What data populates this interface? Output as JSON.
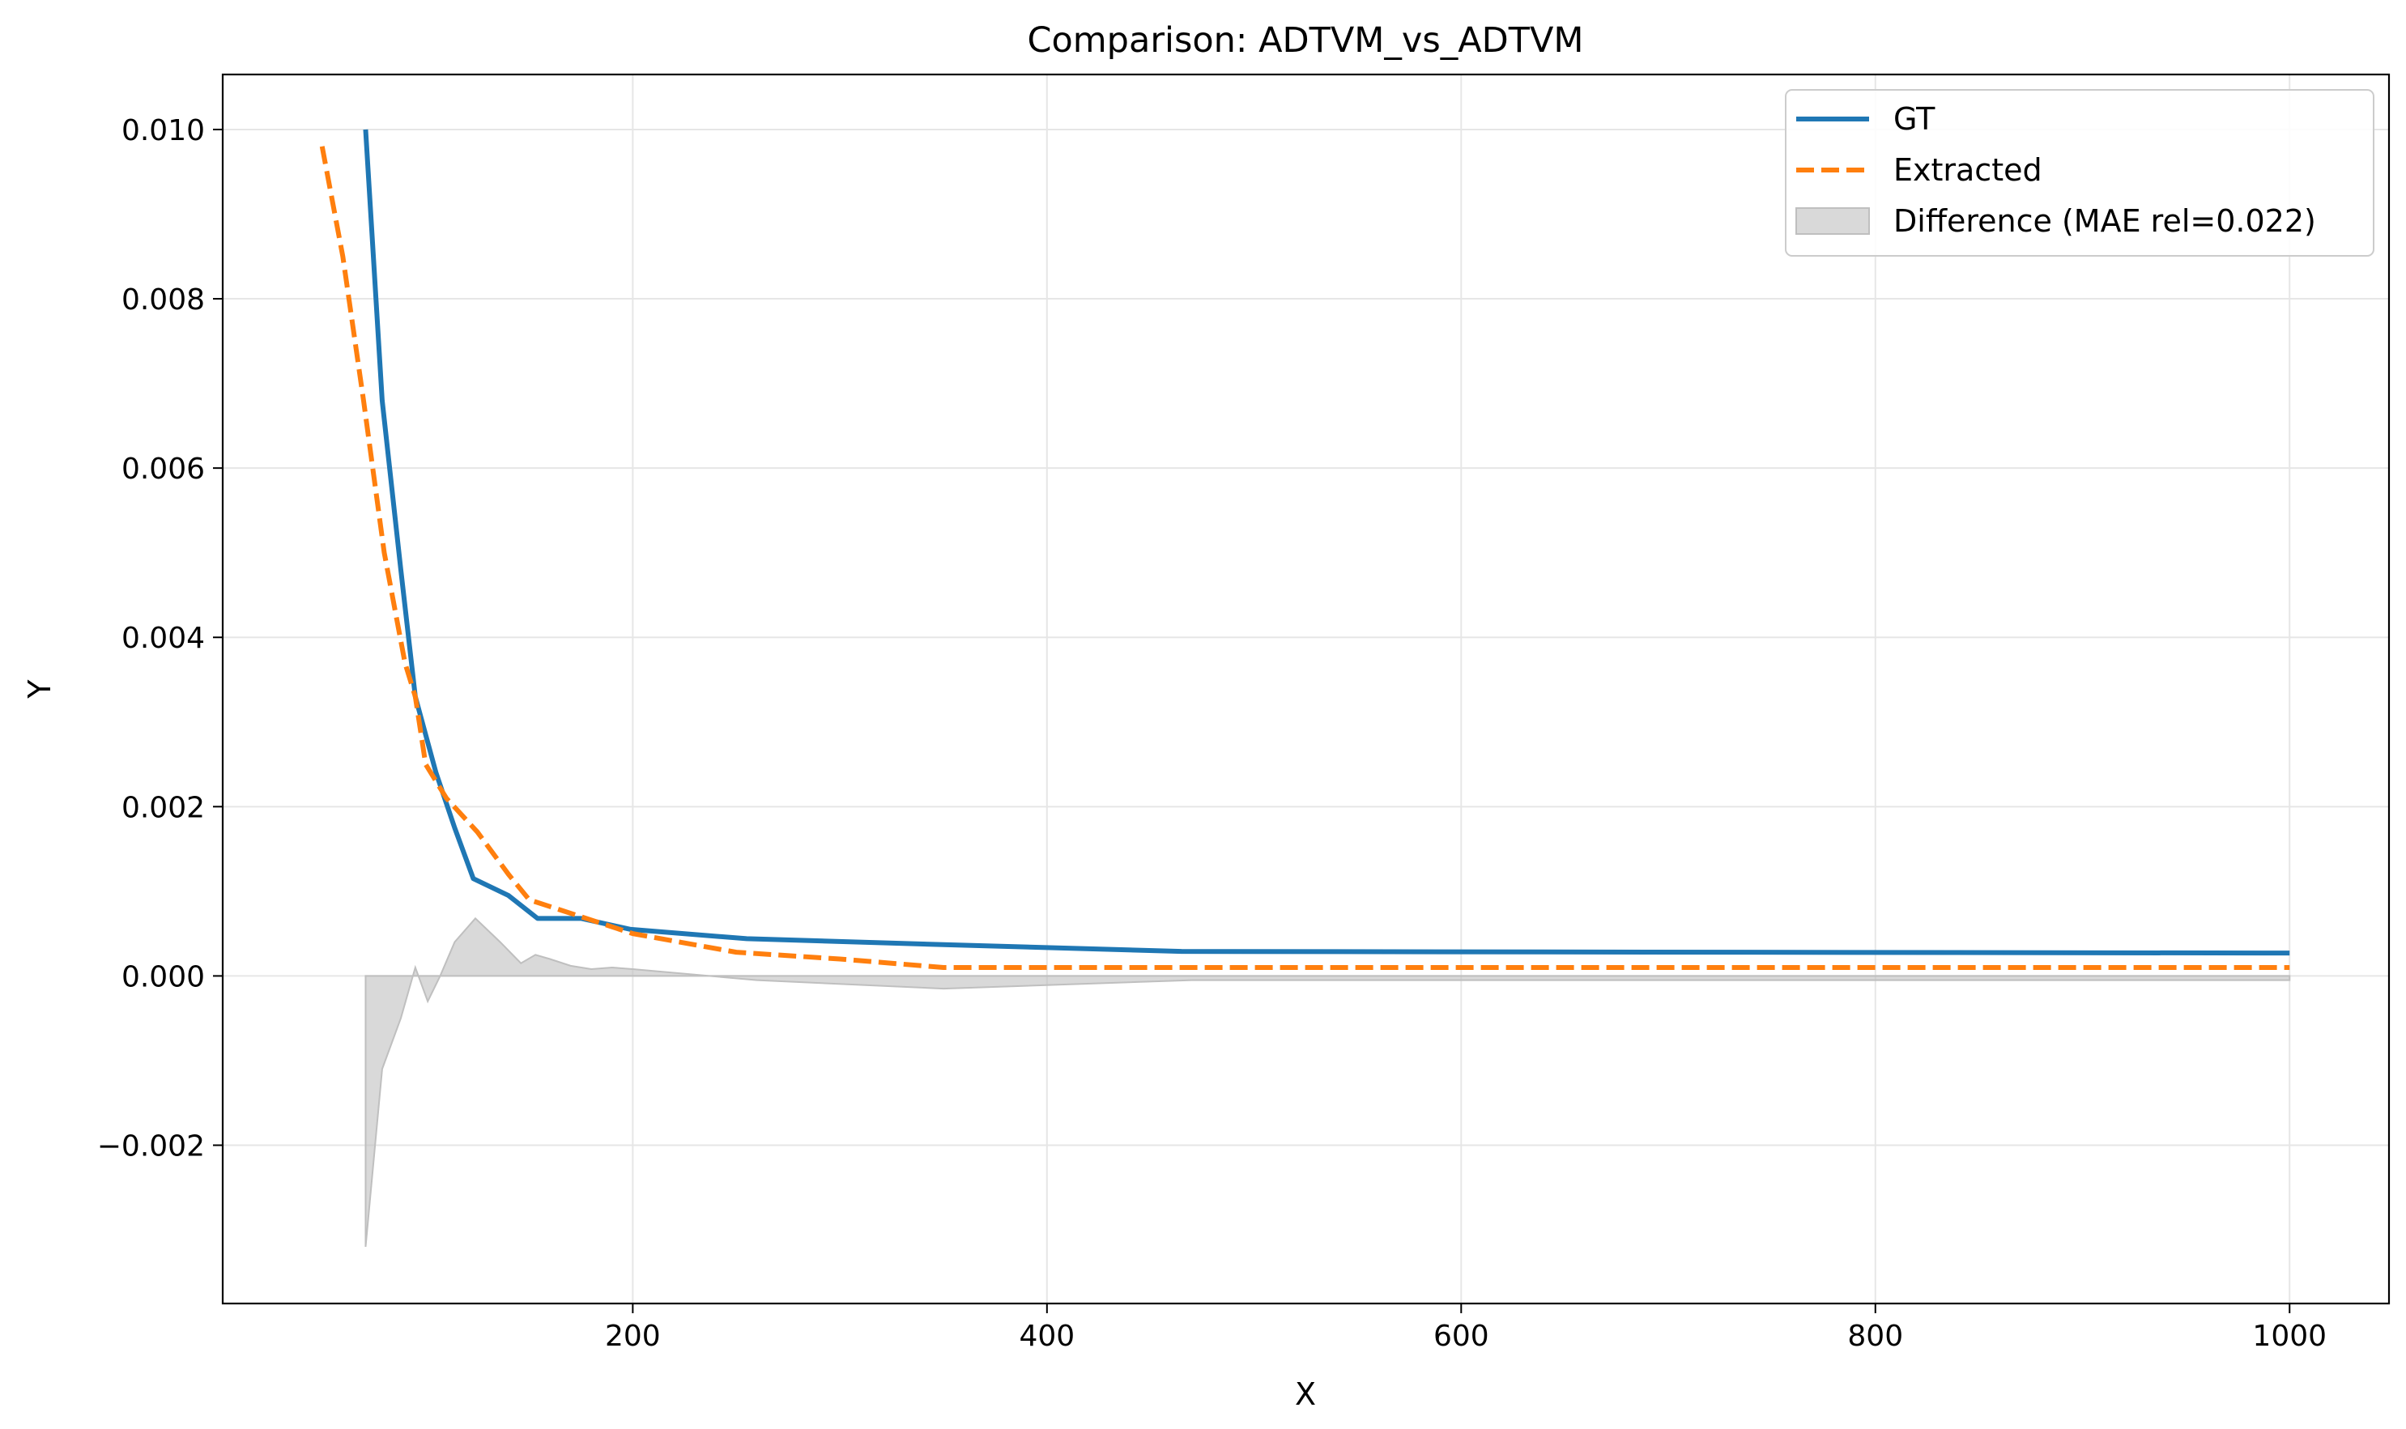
{
  "chart_data": {
    "type": "line",
    "title": "Comparison: ADTVM_vs_ADTVM",
    "xlabel": "X",
    "ylabel": "Y",
    "xlim": [
      2,
      1048
    ],
    "ylim": [
      -0.00387,
      0.01065
    ],
    "xticks": [
      200,
      400,
      600,
      800,
      1000
    ],
    "xtick_labels": [
      "200",
      "400",
      "600",
      "800",
      "1000"
    ],
    "yticks": [
      -0.002,
      0.0,
      0.002,
      0.004,
      0.006,
      0.008,
      0.01
    ],
    "ytick_labels": [
      "−0.002",
      "0.000",
      "0.002",
      "0.004",
      "0.006",
      "0.008",
      "0.010"
    ],
    "grid": true,
    "legend_position": "top-right",
    "series": [
      {
        "name": "GT",
        "color": "#1f77b4",
        "style": "solid",
        "x": [
          71,
          79,
          88,
          95,
          105,
          114,
          123,
          140,
          154,
          175,
          199,
          255,
          350,
          465,
          1000
        ],
        "y": [
          0.01,
          0.0068,
          0.0048,
          0.0033,
          0.0024,
          0.00175,
          0.00115,
          0.00095,
          0.00068,
          0.00068,
          0.00055,
          0.00044,
          0.00037,
          0.00029,
          0.00027
        ]
      },
      {
        "name": "Extracted",
        "color": "#ff7f0e",
        "style": "dashed",
        "x": [
          50,
          60,
          70,
          80,
          90,
          95,
          100,
          110,
          125,
          140,
          150,
          175,
          200,
          250,
          300,
          350,
          1000
        ],
        "y": [
          0.0098,
          0.0085,
          0.0068,
          0.005,
          0.0037,
          0.0033,
          0.0025,
          0.0021,
          0.0017,
          0.0012,
          0.0009,
          0.0007,
          0.0005,
          0.00028,
          0.0002,
          0.0001,
          0.0001
        ]
      },
      {
        "name": "Difference (MAE rel=0.022)",
        "color": "#bfbfbf",
        "style": "fill",
        "x": [
          71,
          79,
          88,
          95,
          101,
          107,
          114,
          124,
          136,
          146,
          153,
          160,
          170,
          180,
          190,
          200,
          260,
          350,
          470,
          1000
        ],
        "y": [
          -0.0032,
          -0.0011,
          -0.0005,
          0.0001,
          -0.0003,
          0.0,
          0.0004,
          0.00068,
          0.0004,
          0.00015,
          0.00025,
          0.0002,
          0.00012,
          8e-05,
          0.0001,
          8e-05,
          -5e-05,
          -0.00015,
          -5e-05,
          -5e-05
        ]
      }
    ]
  }
}
